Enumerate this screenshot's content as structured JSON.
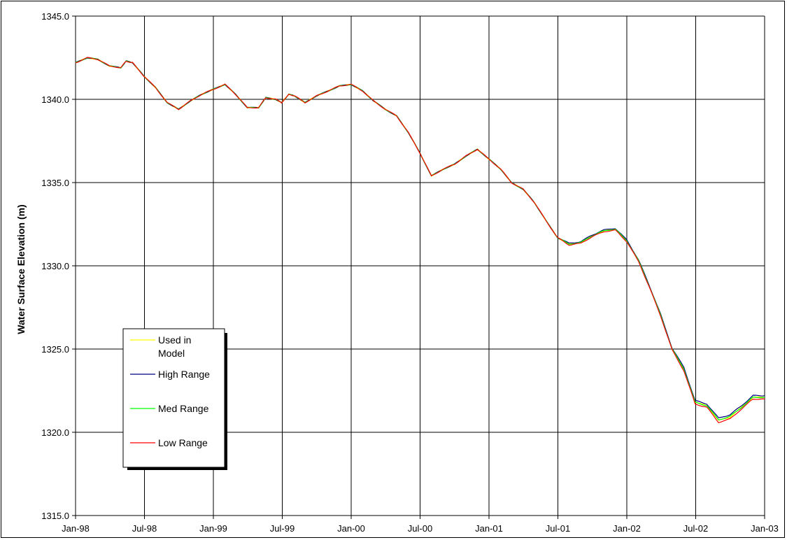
{
  "chart_data": {
    "type": "line",
    "title": "",
    "xlabel": "",
    "ylabel": "Water Surface Elevation (m)",
    "ylim": [
      1315.0,
      1345.0
    ],
    "yticks": [
      "1315.0",
      "1320.0",
      "1325.0",
      "1330.0",
      "1335.0",
      "1340.0",
      "1345.0"
    ],
    "xticks": [
      "Jan-98",
      "Jul-98",
      "Jan-99",
      "Jul-99",
      "Jan-00",
      "Jul-00",
      "Jan-01",
      "Jul-01",
      "Jan-02",
      "Jul-02",
      "Jan-03"
    ],
    "grid": true,
    "legend_position": "lower-left",
    "x": [
      "1998-01-01",
      "1998-02-01",
      "1998-03-01",
      "1998-04-01",
      "1998-05-01",
      "1998-05-15",
      "1998-06-01",
      "1998-07-01",
      "1998-08-01",
      "1998-09-01",
      "1998-10-01",
      "1998-11-01",
      "1998-12-01",
      "1999-01-01",
      "1999-02-01",
      "1999-03-01",
      "1999-04-01",
      "1999-05-01",
      "1999-05-20",
      "1999-06-15",
      "1999-07-01",
      "1999-07-20",
      "1999-08-05",
      "1999-09-01",
      "1999-10-01",
      "1999-11-01",
      "1999-12-01",
      "2000-01-01",
      "2000-02-01",
      "2000-03-01",
      "2000-04-01",
      "2000-05-01",
      "2000-06-01",
      "2000-07-01",
      "2000-08-01",
      "2000-09-01",
      "2000-10-01",
      "2000-11-01",
      "2000-12-01",
      "2001-01-01",
      "2001-02-01",
      "2001-03-01",
      "2001-04-01",
      "2001-05-01",
      "2001-06-01",
      "2001-07-01",
      "2001-08-01",
      "2001-09-01",
      "2001-10-01",
      "2001-11-01",
      "2001-12-01",
      "2002-01-01",
      "2002-02-01",
      "2002-03-01",
      "2002-04-01",
      "2002-05-01",
      "2002-06-01",
      "2002-07-01",
      "2002-08-01",
      "2002-09-01",
      "2002-10-01",
      "2002-11-01",
      "2002-12-01",
      "2003-01-01"
    ],
    "series": [
      {
        "name": "Used in Model",
        "color": "#ffff00",
        "values": [
          1342.2,
          1342.5,
          1342.4,
          1342.0,
          1341.9,
          1342.3,
          1342.2,
          1341.4,
          1340.7,
          1339.8,
          1339.4,
          1339.9,
          1340.3,
          1340.6,
          1340.9,
          1340.3,
          1339.5,
          1339.5,
          1340.1,
          1340.0,
          1339.8,
          1340.3,
          1340.2,
          1339.8,
          1340.2,
          1340.5,
          1340.8,
          1340.9,
          1340.5,
          1339.9,
          1339.4,
          1339.0,
          1338.0,
          1336.8,
          1335.4,
          1335.8,
          1336.1,
          1336.6,
          1337.0,
          1336.4,
          1335.8,
          1335.0,
          1334.6,
          1333.8,
          1332.7,
          1331.7,
          1331.3,
          1331.4,
          1331.8,
          1332.1,
          1332.2,
          1331.5,
          1330.3,
          1328.8,
          1327.0,
          1325.0,
          1323.8,
          1321.8,
          1321.6,
          1320.7,
          1320.9,
          1321.5,
          1322.1,
          1322.1
        ]
      },
      {
        "name": "High Range",
        "color": "#000080",
        "values": [
          1342.2,
          1342.5,
          1342.4,
          1342.0,
          1341.9,
          1342.3,
          1342.2,
          1341.4,
          1340.7,
          1339.8,
          1339.4,
          1339.9,
          1340.3,
          1340.6,
          1340.9,
          1340.3,
          1339.5,
          1339.5,
          1340.1,
          1340.0,
          1339.8,
          1340.3,
          1340.2,
          1339.8,
          1340.2,
          1340.5,
          1340.8,
          1340.9,
          1340.5,
          1339.9,
          1339.4,
          1339.0,
          1338.0,
          1336.8,
          1335.4,
          1335.8,
          1336.1,
          1336.6,
          1337.0,
          1336.4,
          1335.8,
          1335.0,
          1334.6,
          1333.8,
          1332.7,
          1331.7,
          1331.35,
          1331.45,
          1331.85,
          1332.15,
          1332.25,
          1331.55,
          1330.35,
          1328.85,
          1327.05,
          1325.05,
          1323.9,
          1321.9,
          1321.7,
          1320.85,
          1321.05,
          1321.6,
          1322.2,
          1322.2
        ]
      },
      {
        "name": "Med Range",
        "color": "#00ff00",
        "values": [
          1342.2,
          1342.5,
          1342.4,
          1342.0,
          1341.9,
          1342.3,
          1342.2,
          1341.4,
          1340.7,
          1339.8,
          1339.4,
          1339.9,
          1340.3,
          1340.6,
          1340.9,
          1340.3,
          1339.5,
          1339.5,
          1340.1,
          1340.0,
          1339.8,
          1340.3,
          1340.2,
          1339.8,
          1340.2,
          1340.5,
          1340.8,
          1340.9,
          1340.5,
          1339.9,
          1339.4,
          1339.0,
          1338.0,
          1336.8,
          1335.4,
          1335.8,
          1336.1,
          1336.6,
          1337.0,
          1336.4,
          1335.8,
          1335.0,
          1334.6,
          1333.8,
          1332.7,
          1331.7,
          1331.3,
          1331.4,
          1331.8,
          1332.1,
          1332.2,
          1331.5,
          1330.3,
          1328.8,
          1327.0,
          1325.0,
          1323.8,
          1321.8,
          1321.6,
          1320.75,
          1320.95,
          1321.5,
          1322.1,
          1322.1
        ]
      },
      {
        "name": "Low Range",
        "color": "#ff0000",
        "values": [
          1342.2,
          1342.5,
          1342.4,
          1342.0,
          1341.9,
          1342.3,
          1342.2,
          1341.4,
          1340.7,
          1339.8,
          1339.4,
          1339.9,
          1340.3,
          1340.6,
          1340.9,
          1340.3,
          1339.5,
          1339.5,
          1340.1,
          1340.0,
          1339.8,
          1340.3,
          1340.2,
          1339.8,
          1340.2,
          1340.5,
          1340.8,
          1340.9,
          1340.5,
          1339.9,
          1339.4,
          1339.0,
          1338.0,
          1336.8,
          1335.4,
          1335.8,
          1336.1,
          1336.6,
          1337.0,
          1336.4,
          1335.8,
          1335.0,
          1334.6,
          1333.8,
          1332.7,
          1331.7,
          1331.25,
          1331.35,
          1331.75,
          1332.05,
          1332.15,
          1331.45,
          1330.25,
          1328.75,
          1326.95,
          1324.95,
          1323.7,
          1321.7,
          1321.5,
          1320.6,
          1320.8,
          1321.4,
          1322.0,
          1322.0
        ]
      }
    ]
  },
  "legend": {
    "items": [
      {
        "label_line1": "Used in",
        "label_line2": "Model"
      },
      {
        "label_line1": "High Range",
        "label_line2": ""
      },
      {
        "label_line1": "Med Range",
        "label_line2": ""
      },
      {
        "label_line1": "Low Range",
        "label_line2": ""
      }
    ]
  }
}
